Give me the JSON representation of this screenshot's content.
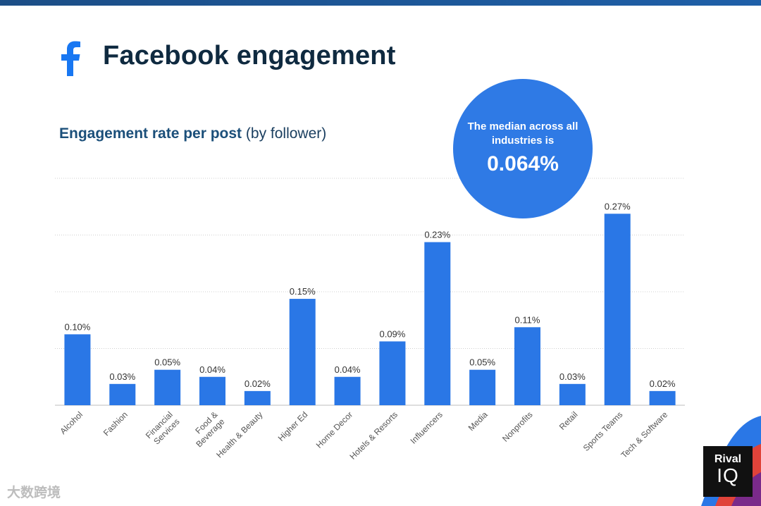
{
  "header": {
    "title": "Facebook engagement",
    "icon": "facebook-icon"
  },
  "subtitle": {
    "bold": "Engagement rate per post",
    "rest": " (by follower)"
  },
  "median": {
    "label": "The median across all industries is",
    "value": "0.064%"
  },
  "chart_data": {
    "type": "bar",
    "title": "Engagement rate per post (by follower)",
    "xlabel": "",
    "ylabel": "",
    "ylim": [
      0,
      0.32
    ],
    "grid": true,
    "categories": [
      "Alcohol",
      "Fashion",
      "Financial Services",
      "Food & Beverage",
      "Health & Beauty",
      "Higher Ed",
      "Home Decor",
      "Hotels & Resorts",
      "Influencers",
      "Media",
      "Nonprofits",
      "Retail",
      "Sports Teams",
      "Tech & Software"
    ],
    "category_lines": [
      [
        "Alcohol"
      ],
      [
        "Fashion"
      ],
      [
        "Financial",
        "Services"
      ],
      [
        "Food &",
        "Beverage"
      ],
      [
        "Health & Beauty"
      ],
      [
        "Higher Ed"
      ],
      [
        "Home Decor"
      ],
      [
        "Hotels & Resorts"
      ],
      [
        "Influencers"
      ],
      [
        "Media"
      ],
      [
        "Nonprofits"
      ],
      [
        "Retail"
      ],
      [
        "Sports Teams"
      ],
      [
        "Tech & Software"
      ]
    ],
    "values": [
      0.1,
      0.03,
      0.05,
      0.04,
      0.02,
      0.15,
      0.04,
      0.09,
      0.23,
      0.05,
      0.11,
      0.03,
      0.27,
      0.02
    ],
    "labels": [
      "0.10%",
      "0.03%",
      "0.05%",
      "0.04%",
      "0.02%",
      "0.15%",
      "0.04%",
      "0.09%",
      "0.23%",
      "0.05%",
      "0.11%",
      "0.03%",
      "0.27%",
      "0.02%"
    ]
  },
  "logo": {
    "line1": "Rival",
    "line2": "IQ"
  },
  "watermark": "大数跨境",
  "colors": {
    "bar": "#2a77e6",
    "title": "#0f2a40",
    "accent": "#2f7ae5",
    "facebook": "#1877f2"
  }
}
